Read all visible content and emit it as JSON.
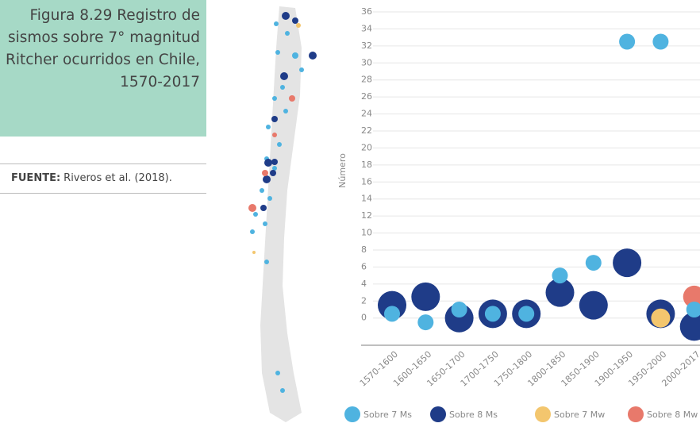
{
  "caption": {
    "title": "Figura 8.29 Registro de sismos sobre 7° magnitud Ritcher ocurridos en Chile, 1570-2017",
    "source_label": "FUENTE:",
    "source": "Riveros et al. (2018)."
  },
  "chart_data": {
    "type": "bubble",
    "ylabel": "Número",
    "categories": [
      "1570-1600",
      "1600-1650",
      "1650-1700",
      "1700-1750",
      "1750-1800",
      "1800-1850",
      "1850-1900",
      "1900-1950",
      "1950-2000",
      "2000-2017"
    ],
    "series": [
      {
        "name": "Sobre 7 Ms",
        "color": "#4fb3e0",
        "values": [
          0.5,
          -0.5,
          1,
          0.5,
          0.5,
          5,
          6.5,
          32.5,
          32.5,
          1
        ]
      },
      {
        "name": "Sobre 8 Ms",
        "color": "#1f3c88",
        "values": [
          1.5,
          2.5,
          0,
          0.5,
          0.5,
          3,
          1.5,
          6.5,
          0.5,
          -1
        ]
      },
      {
        "name": "Sobre 7 Mw",
        "color": "#f3c66e",
        "values": [
          null,
          null,
          null,
          null,
          null,
          null,
          null,
          null,
          0,
          null
        ]
      },
      {
        "name": "Sobre 8 Mw",
        "color": "#e8796b",
        "values": [
          null,
          null,
          null,
          null,
          null,
          null,
          null,
          null,
          null,
          2.5
        ]
      }
    ],
    "ylim": [
      -3.2,
      36
    ],
    "yticks": [
      0,
      2,
      4,
      6,
      8,
      10,
      12,
      14,
      16,
      18,
      20,
      22,
      24,
      26,
      28,
      30,
      32,
      34,
      36
    ],
    "grid": true
  }
}
